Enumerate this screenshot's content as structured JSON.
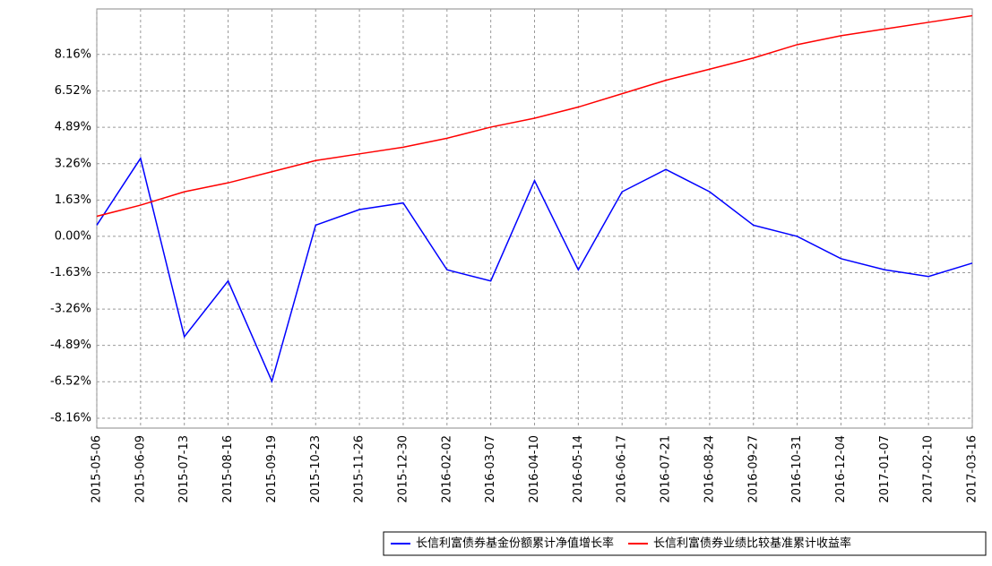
{
  "chart_data": {
    "type": "line",
    "categories": [
      "2015-05-06",
      "2015-06-09",
      "2015-07-13",
      "2015-08-16",
      "2015-09-19",
      "2015-10-23",
      "2015-11-26",
      "2015-12-30",
      "2016-02-02",
      "2016-03-07",
      "2016-04-10",
      "2016-05-14",
      "2016-06-17",
      "2016-07-21",
      "2016-08-24",
      "2016-09-27",
      "2016-10-31",
      "2016-12-04",
      "2017-01-07",
      "2017-02-10",
      "2017-03-16"
    ],
    "series": [
      {
        "name": "长信利富债券基金份额累计净值增长率",
        "color": "#0000ff",
        "values": [
          0.5,
          3.5,
          -4.5,
          -2.0,
          -6.5,
          0.5,
          1.2,
          1.5,
          -1.5,
          -2.0,
          2.5,
          -1.5,
          2.0,
          3.0,
          2.0,
          0.5,
          0.0,
          -1.0,
          -1.5,
          -1.8,
          -1.2
        ]
      },
      {
        "name": "长信利富债券业绩比较基准累计收益率",
        "color": "#ff0000",
        "values": [
          0.9,
          1.4,
          2.0,
          2.4,
          2.9,
          3.4,
          3.7,
          4.0,
          4.4,
          4.9,
          5.3,
          5.8,
          6.4,
          7.0,
          7.5,
          8.0,
          8.6,
          9.0,
          9.3,
          9.6,
          9.9
        ]
      }
    ],
    "ylim": [
      -8.6,
      10.2
    ],
    "yticks": [
      {
        "value": 8.16,
        "label": "8.16%"
      },
      {
        "value": 6.52,
        "label": "6.52%"
      },
      {
        "value": 4.89,
        "label": "4.89%"
      },
      {
        "value": 3.26,
        "label": "3.26%"
      },
      {
        "value": 1.63,
        "label": "1.63%"
      },
      {
        "value": 0,
        "label": "0.00%"
      },
      {
        "value": -1.63,
        "label": "-1.63%"
      },
      {
        "value": -3.26,
        "label": "-3.26%"
      },
      {
        "value": -4.89,
        "label": "-4.89%"
      },
      {
        "value": -6.52,
        "label": "-6.52%"
      },
      {
        "value": -8.16,
        "label": "-8.16%"
      }
    ],
    "grid": true
  }
}
